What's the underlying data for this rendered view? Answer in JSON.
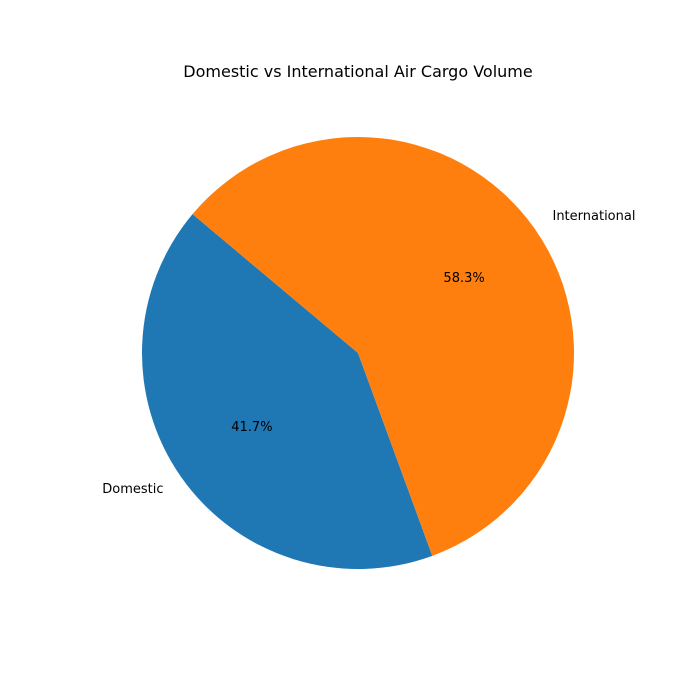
{
  "chart_data": {
    "type": "pie",
    "title": "Domestic vs International Air Cargo Volume",
    "slices": [
      {
        "label": "Domestic",
        "value": 41.7,
        "pct_label": "41.7%",
        "color": "#1f77b4"
      },
      {
        "label": "International",
        "value": 58.3,
        "pct_label": "58.3%",
        "color": "#ff7f0e"
      }
    ],
    "start_angle_deg": 140,
    "direction": "counterclockwise"
  }
}
